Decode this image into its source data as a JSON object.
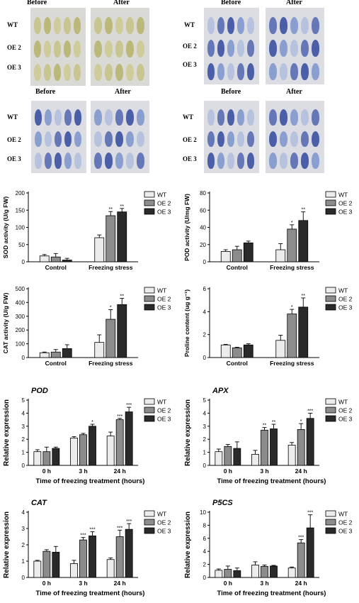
{
  "photo_panels": [
    {
      "before": "Before",
      "after": "After",
      "rows": [
        "WT",
        "OE 2",
        "OE 3"
      ],
      "stain": "tan"
    },
    {
      "before": "Before",
      "after": "After",
      "rows": [
        "WT",
        "OE 2",
        "OE 3"
      ],
      "stain": "blue"
    },
    {
      "before": "Before",
      "after": "After",
      "rows": [
        "WT",
        "OE 2",
        "OE 3"
      ],
      "stain": "blue"
    },
    {
      "before": "Before",
      "after": "After",
      "rows": [
        "WT",
        "OE 2",
        "OE 3"
      ],
      "stain": "blue"
    }
  ],
  "chart_data": [
    {
      "type": "bar",
      "ylabel": "SOD activity (U/g FW)",
      "ylim": [
        0,
        200
      ],
      "yticks": [
        0,
        50,
        100,
        150,
        200
      ],
      "categories": [
        "Control",
        "Freezing stress"
      ],
      "series": [
        {
          "name": "WT",
          "values": [
            17,
            70
          ],
          "errors": [
            4,
            8
          ],
          "sig": [
            "",
            ""
          ]
        },
        {
          "name": "OE 2",
          "values": [
            14,
            134
          ],
          "errors": [
            10,
            12
          ],
          "sig": [
            "",
            "**"
          ]
        },
        {
          "name": "OE 3",
          "values": [
            5,
            145
          ],
          "errors": [
            5,
            10
          ],
          "sig": [
            "",
            "**"
          ]
        }
      ],
      "legend": "top-right"
    },
    {
      "type": "bar",
      "ylabel": "POD activity (U/mg FW)",
      "ylim": [
        0,
        80
      ],
      "yticks": [
        0,
        20,
        40,
        60,
        80
      ],
      "categories": [
        "Control",
        "Freezing stress"
      ],
      "series": [
        {
          "name": "WT",
          "values": [
            12,
            14
          ],
          "errors": [
            2,
            7
          ],
          "sig": [
            "",
            ""
          ]
        },
        {
          "name": "OE 2",
          "values": [
            14,
            38
          ],
          "errors": [
            4,
            5
          ],
          "sig": [
            "",
            "*"
          ]
        },
        {
          "name": "OE 3",
          "values": [
            22,
            48
          ],
          "errors": [
            2,
            10
          ],
          "sig": [
            "",
            "**"
          ]
        }
      ],
      "legend": "top-right"
    },
    {
      "type": "bar",
      "ylabel": "CAT activity (U/g FW)",
      "ylim": [
        0,
        500
      ],
      "yticks": [
        0,
        100,
        200,
        300,
        400,
        500
      ],
      "categories": [
        "Control",
        "Freezing stress"
      ],
      "series": [
        {
          "name": "WT",
          "values": [
            35,
            110
          ],
          "errors": [
            5,
            55
          ],
          "sig": [
            "",
            ""
          ]
        },
        {
          "name": "OE 2",
          "values": [
            40,
            278
          ],
          "errors": [
            18,
            70
          ],
          "sig": [
            "",
            "*"
          ]
        },
        {
          "name": "OE 3",
          "values": [
            65,
            385
          ],
          "errors": [
            28,
            45
          ],
          "sig": [
            "",
            "**"
          ]
        }
      ],
      "legend": "top-right"
    },
    {
      "type": "bar",
      "ylabel": "Proline content (ug g⁻¹)",
      "ylim": [
        0,
        6
      ],
      "yticks": [
        0,
        2,
        4,
        6
      ],
      "categories": [
        "Control",
        "Freezing stress"
      ],
      "series": [
        {
          "name": "WT",
          "values": [
            1.1,
            1.5
          ],
          "errors": [
            0.05,
            0.45
          ],
          "sig": [
            "",
            ""
          ]
        },
        {
          "name": "OE 2",
          "values": [
            0.85,
            3.8
          ],
          "errors": [
            0.05,
            0.4
          ],
          "sig": [
            "",
            "*"
          ]
        },
        {
          "name": "OE 3",
          "values": [
            1.1,
            4.4
          ],
          "errors": [
            0.1,
            0.8
          ],
          "sig": [
            "",
            "**"
          ]
        }
      ],
      "legend": "top-right"
    },
    {
      "type": "bar",
      "title": "POD",
      "ylabel": "Relative expression",
      "xlabel": "Time of freezing treatment (hours)",
      "ylim": [
        0,
        5
      ],
      "yticks": [
        0,
        1,
        2,
        3,
        4,
        5
      ],
      "categories": [
        "0 h",
        "3 h",
        "24 h"
      ],
      "series": [
        {
          "name": "WT",
          "values": [
            1.05,
            2.1,
            2.25
          ],
          "errors": [
            0.15,
            0.1,
            0.3
          ],
          "sig": [
            "",
            "",
            ""
          ]
        },
        {
          "name": "OE 2",
          "values": [
            1.05,
            2.35,
            3.5
          ],
          "errors": [
            0.35,
            0.1,
            0.1
          ],
          "sig": [
            "",
            "",
            "***"
          ]
        },
        {
          "name": "OE 3",
          "values": [
            1.3,
            3.0,
            4.1
          ],
          "errors": [
            0.1,
            0.15,
            0.35
          ],
          "sig": [
            "",
            "*",
            "***"
          ]
        }
      ],
      "legend": "top-right"
    },
    {
      "type": "bar",
      "title": "APX",
      "ylabel": "Relative expression",
      "xlabel": "Time of freezing treatment (hours)",
      "ylim": [
        0,
        5
      ],
      "yticks": [
        0,
        1,
        2,
        3,
        4,
        5
      ],
      "categories": [
        "0 h",
        "3 h",
        "24 h"
      ],
      "series": [
        {
          "name": "WT",
          "values": [
            1.05,
            0.85,
            1.55
          ],
          "errors": [
            0.2,
            0.3,
            0.2
          ],
          "sig": [
            "",
            "",
            ""
          ]
        },
        {
          "name": "OE 2",
          "values": [
            1.45,
            2.7,
            2.75
          ],
          "errors": [
            0.15,
            0.2,
            0.45
          ],
          "sig": [
            "",
            "**",
            "*"
          ]
        },
        {
          "name": "OE 3",
          "values": [
            1.3,
            2.8,
            3.6
          ],
          "errors": [
            0.5,
            0.35,
            0.4
          ],
          "sig": [
            "",
            "**",
            "***"
          ]
        }
      ],
      "legend": "top-right"
    },
    {
      "type": "bar",
      "title": "CAT",
      "ylabel": "Relative expression",
      "xlabel": "Time of freezing treatment (hours)",
      "ylim": [
        0,
        4
      ],
      "yticks": [
        0,
        1,
        2,
        3,
        4
      ],
      "categories": [
        "0 h",
        "3 h",
        "24 h"
      ],
      "series": [
        {
          "name": "WT",
          "values": [
            1.0,
            0.85,
            1.1
          ],
          "errors": [
            0.05,
            0.2,
            0.1
          ],
          "sig": [
            "",
            "",
            ""
          ]
        },
        {
          "name": "OE 2",
          "values": [
            1.6,
            2.3,
            2.5
          ],
          "errors": [
            0.1,
            0.15,
            0.4
          ],
          "sig": [
            "",
            "***",
            "***"
          ]
        },
        {
          "name": "OE 3",
          "values": [
            1.55,
            2.55,
            2.95
          ],
          "errors": [
            0.35,
            0.25,
            0.35
          ],
          "sig": [
            "",
            "***",
            "***"
          ]
        }
      ],
      "legend": "top-right"
    },
    {
      "type": "bar",
      "title": "P5CS",
      "ylabel": "Relative expression",
      "xlabel": "Time of freezing treatment (hours)",
      "ylim": [
        0,
        10
      ],
      "yticks": [
        0,
        2,
        4,
        6,
        8,
        10
      ],
      "categories": [
        "0 h",
        "3 h",
        "24 h"
      ],
      "series": [
        {
          "name": "WT",
          "values": [
            1.1,
            1.9,
            1.45
          ],
          "errors": [
            0.2,
            0.5,
            0.15
          ],
          "sig": [
            "",
            "",
            ""
          ]
        },
        {
          "name": "OE 2",
          "values": [
            1.25,
            1.7,
            5.3
          ],
          "errors": [
            0.5,
            0.2,
            0.5
          ],
          "sig": [
            "",
            "",
            "***"
          ]
        },
        {
          "name": "OE 3",
          "values": [
            1.05,
            1.75,
            7.6
          ],
          "errors": [
            0.4,
            0.1,
            2.0
          ],
          "sig": [
            "",
            "",
            "***"
          ]
        }
      ],
      "legend": "top-right"
    }
  ]
}
